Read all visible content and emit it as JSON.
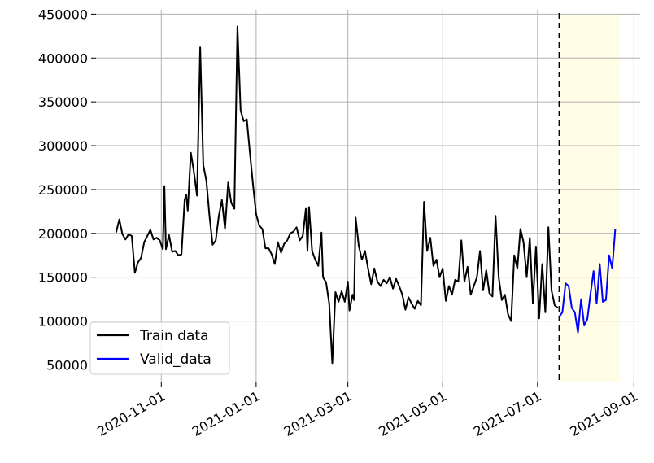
{
  "chart_data": {
    "type": "line",
    "title": "",
    "xlabel": "",
    "ylabel": "",
    "ylim": [
      30000,
      455000
    ],
    "xlim": [
      "2020-09-20",
      "2021-09-05"
    ],
    "grid": true,
    "legend_position": "lower-left",
    "x_ticks": [
      "2020-11-01",
      "2021-01-01",
      "2021-03-01",
      "2021-05-01",
      "2021-07-01",
      "2021-09-01"
    ],
    "y_ticks": [
      50000,
      100000,
      150000,
      200000,
      250000,
      300000,
      350000,
      400000,
      450000
    ],
    "y_tick_labels": [
      "50000",
      "100000",
      "150000",
      "200000",
      "250000",
      "300000",
      "350000",
      "400000",
      "450000"
    ],
    "split_date": "2021-07-15",
    "highlight_range": [
      "2021-07-15",
      "2021-08-23"
    ],
    "highlight_color": "#fffde6",
    "split_line_color": "#000000",
    "series": [
      {
        "name": "Train data",
        "color": "#000000",
        "points": [
          [
            "2020-10-03",
            201000
          ],
          [
            "2020-10-05",
            216000
          ],
          [
            "2020-10-07",
            199000
          ],
          [
            "2020-10-09",
            193000
          ],
          [
            "2020-10-11",
            199000
          ],
          [
            "2020-10-13",
            197000
          ],
          [
            "2020-10-15",
            155000
          ],
          [
            "2020-10-17",
            167000
          ],
          [
            "2020-10-19",
            172000
          ],
          [
            "2020-10-21",
            190000
          ],
          [
            "2020-10-23",
            197000
          ],
          [
            "2020-10-25",
            204000
          ],
          [
            "2020-10-27",
            193000
          ],
          [
            "2020-10-29",
            195000
          ],
          [
            "2020-10-31",
            192000
          ],
          [
            "2020-11-02",
            182000
          ],
          [
            "2020-11-03",
            254000
          ],
          [
            "2020-11-04",
            182000
          ],
          [
            "2020-11-06",
            198000
          ],
          [
            "2020-11-08",
            179000
          ],
          [
            "2020-11-10",
            180000
          ],
          [
            "2020-11-12",
            175000
          ],
          [
            "2020-11-14",
            176000
          ],
          [
            "2020-11-16",
            238000
          ],
          [
            "2020-11-17",
            244000
          ],
          [
            "2020-11-18",
            226000
          ],
          [
            "2020-11-20",
            292000
          ],
          [
            "2020-11-22",
            270000
          ],
          [
            "2020-11-24",
            243000
          ],
          [
            "2020-11-26",
            412000
          ],
          [
            "2020-11-28",
            278000
          ],
          [
            "2020-11-30",
            260000
          ],
          [
            "2020-12-02",
            220000
          ],
          [
            "2020-12-04",
            187000
          ],
          [
            "2020-12-06",
            192000
          ],
          [
            "2020-12-08",
            220000
          ],
          [
            "2020-12-10",
            238000
          ],
          [
            "2020-12-12",
            205000
          ],
          [
            "2020-12-14",
            258000
          ],
          [
            "2020-12-16",
            235000
          ],
          [
            "2020-12-18",
            228000
          ],
          [
            "2020-12-20",
            436000
          ],
          [
            "2020-12-22",
            340000
          ],
          [
            "2020-12-24",
            328000
          ],
          [
            "2020-12-26",
            330000
          ],
          [
            "2020-12-28",
            292000
          ],
          [
            "2020-12-30",
            255000
          ],
          [
            "2021-01-01",
            222000
          ],
          [
            "2021-01-03",
            209000
          ],
          [
            "2021-01-05",
            205000
          ],
          [
            "2021-01-07",
            183000
          ],
          [
            "2021-01-09",
            183000
          ],
          [
            "2021-01-11",
            176000
          ],
          [
            "2021-01-13",
            165000
          ],
          [
            "2021-01-15",
            190000
          ],
          [
            "2021-01-17",
            178000
          ],
          [
            "2021-01-19",
            188000
          ],
          [
            "2021-01-21",
            192000
          ],
          [
            "2021-01-23",
            200000
          ],
          [
            "2021-01-25",
            202000
          ],
          [
            "2021-01-27",
            207000
          ],
          [
            "2021-01-29",
            192000
          ],
          [
            "2021-01-31",
            197000
          ],
          [
            "2021-02-02",
            228000
          ],
          [
            "2021-02-03",
            180000
          ],
          [
            "2021-02-04",
            230000
          ],
          [
            "2021-02-06",
            180000
          ],
          [
            "2021-02-08",
            170000
          ],
          [
            "2021-02-10",
            163000
          ],
          [
            "2021-02-12",
            201000
          ],
          [
            "2021-02-13",
            150000
          ],
          [
            "2021-02-15",
            144000
          ],
          [
            "2021-02-17",
            120000
          ],
          [
            "2021-02-19",
            52000
          ],
          [
            "2021-02-21",
            133000
          ],
          [
            "2021-02-23",
            122000
          ],
          [
            "2021-02-25",
            134000
          ],
          [
            "2021-02-27",
            122000
          ],
          [
            "2021-03-01",
            145000
          ],
          [
            "2021-03-02",
            112000
          ],
          [
            "2021-03-04",
            130000
          ],
          [
            "2021-03-05",
            124000
          ],
          [
            "2021-03-06",
            218000
          ],
          [
            "2021-03-08",
            186000
          ],
          [
            "2021-03-10",
            170000
          ],
          [
            "2021-03-12",
            180000
          ],
          [
            "2021-03-14",
            160000
          ],
          [
            "2021-03-16",
            142000
          ],
          [
            "2021-03-18",
            160000
          ],
          [
            "2021-03-20",
            145000
          ],
          [
            "2021-03-22",
            140000
          ],
          [
            "2021-03-24",
            147000
          ],
          [
            "2021-03-26",
            143000
          ],
          [
            "2021-03-28",
            150000
          ],
          [
            "2021-03-30",
            137000
          ],
          [
            "2021-04-01",
            148000
          ],
          [
            "2021-04-03",
            140000
          ],
          [
            "2021-04-05",
            130000
          ],
          [
            "2021-04-07",
            113000
          ],
          [
            "2021-04-09",
            127000
          ],
          [
            "2021-04-11",
            120000
          ],
          [
            "2021-04-13",
            114000
          ],
          [
            "2021-04-15",
            123000
          ],
          [
            "2021-04-17",
            118000
          ],
          [
            "2021-04-19",
            236000
          ],
          [
            "2021-04-21",
            180000
          ],
          [
            "2021-04-23",
            195000
          ],
          [
            "2021-04-25",
            163000
          ],
          [
            "2021-04-27",
            170000
          ],
          [
            "2021-04-29",
            150000
          ],
          [
            "2021-05-01",
            160000
          ],
          [
            "2021-05-03",
            123000
          ],
          [
            "2021-05-05",
            140000
          ],
          [
            "2021-05-07",
            130000
          ],
          [
            "2021-05-09",
            147000
          ],
          [
            "2021-05-11",
            145000
          ],
          [
            "2021-05-13",
            192000
          ],
          [
            "2021-05-15",
            145000
          ],
          [
            "2021-05-17",
            162000
          ],
          [
            "2021-05-19",
            130000
          ],
          [
            "2021-05-21",
            140000
          ],
          [
            "2021-05-23",
            150000
          ],
          [
            "2021-05-25",
            180000
          ],
          [
            "2021-05-27",
            135000
          ],
          [
            "2021-05-29",
            158000
          ],
          [
            "2021-05-31",
            132000
          ],
          [
            "2021-06-02",
            128000
          ],
          [
            "2021-06-04",
            220000
          ],
          [
            "2021-06-06",
            150000
          ],
          [
            "2021-06-08",
            124000
          ],
          [
            "2021-06-10",
            130000
          ],
          [
            "2021-06-12",
            108000
          ],
          [
            "2021-06-14",
            100000
          ],
          [
            "2021-06-16",
            175000
          ],
          [
            "2021-06-18",
            160000
          ],
          [
            "2021-06-20",
            205000
          ],
          [
            "2021-06-22",
            190000
          ],
          [
            "2021-06-24",
            150000
          ],
          [
            "2021-06-26",
            195000
          ],
          [
            "2021-06-28",
            120000
          ],
          [
            "2021-06-30",
            185000
          ],
          [
            "2021-07-02",
            103000
          ],
          [
            "2021-07-04",
            165000
          ],
          [
            "2021-07-06",
            110000
          ],
          [
            "2021-07-08",
            207000
          ],
          [
            "2021-07-10",
            135000
          ],
          [
            "2021-07-12",
            118000
          ],
          [
            "2021-07-14",
            115000
          ]
        ]
      },
      {
        "name": "Valid_data",
        "color": "#0000ff",
        "points": [
          [
            "2021-07-15",
            105000
          ],
          [
            "2021-07-17",
            110000
          ],
          [
            "2021-07-19",
            143000
          ],
          [
            "2021-07-21",
            140000
          ],
          [
            "2021-07-23",
            115000
          ],
          [
            "2021-07-25",
            110000
          ],
          [
            "2021-07-27",
            87000
          ],
          [
            "2021-07-29",
            125000
          ],
          [
            "2021-07-31",
            95000
          ],
          [
            "2021-08-02",
            102000
          ],
          [
            "2021-08-04",
            130000
          ],
          [
            "2021-08-06",
            157000
          ],
          [
            "2021-08-08",
            120000
          ],
          [
            "2021-08-10",
            165000
          ],
          [
            "2021-08-12",
            122000
          ],
          [
            "2021-08-14",
            124000
          ],
          [
            "2021-08-16",
            175000
          ],
          [
            "2021-08-18",
            160000
          ],
          [
            "2021-08-20",
            205000
          ]
        ]
      }
    ]
  }
}
